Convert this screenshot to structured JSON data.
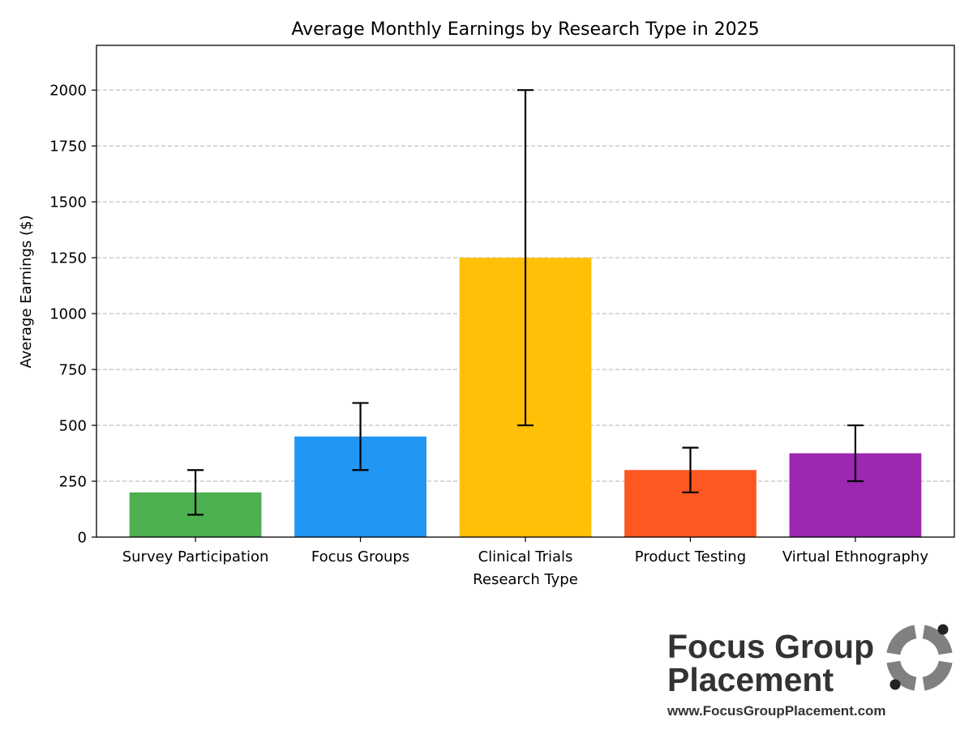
{
  "chart_data": {
    "type": "bar",
    "title": "Average Monthly Earnings by Research Type in 2025",
    "xlabel": "Research Type",
    "ylabel": "Average Earnings ($)",
    "categories": [
      "Survey Participation",
      "Focus Groups",
      "Clinical Trials",
      "Product Testing",
      "Virtual Ethnography"
    ],
    "values": [
      200,
      450,
      1250,
      300,
      375
    ],
    "error_low": [
      100,
      300,
      500,
      200,
      250
    ],
    "error_high": [
      300,
      600,
      2000,
      400,
      500
    ],
    "colors": [
      "#4caf50",
      "#2196f3",
      "#ffc107",
      "#ff5722",
      "#9c27b0"
    ],
    "ylim": [
      0,
      2200
    ],
    "yticks": [
      0,
      250,
      500,
      750,
      1000,
      1250,
      1500,
      1750,
      2000
    ],
    "grid": "y-dashed",
    "legend": "none"
  },
  "branding": {
    "line1": "Focus Group",
    "line2": "Placement",
    "url": "www.FocusGroupPlacement.com",
    "text_color": "#333333",
    "icon_color": "#808080",
    "icon_dot_color": "#222222"
  }
}
